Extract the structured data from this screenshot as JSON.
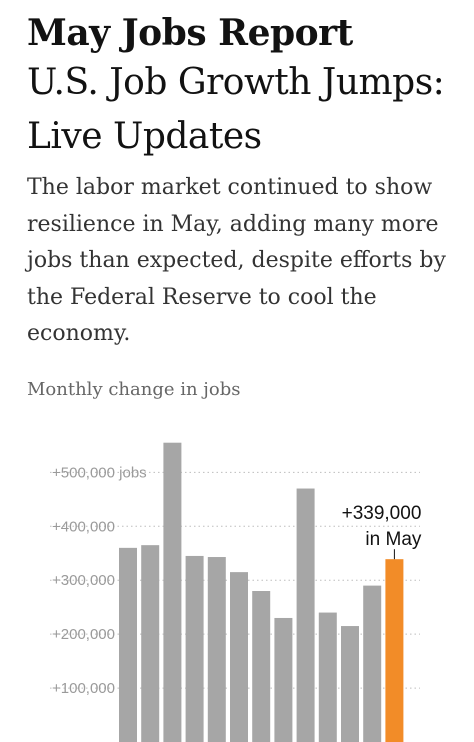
{
  "article": {
    "kicker": "May Jobs Report",
    "headline": "U.S. Job Growth Jumps: Live Updates",
    "summary": "The labor market continued to show resilience in May, adding many more jobs than expected, despite efforts by the Federal Reserve to cool the economy."
  },
  "colors": {
    "bar": "#a6a6a6",
    "highlight": "#f28c28",
    "text": "#121212"
  },
  "chart_data": {
    "type": "bar",
    "title": "Monthly change in jobs",
    "categories": [
      "",
      "",
      "",
      "",
      "",
      "",
      "",
      "",
      "",
      "",
      "",
      "",
      ""
    ],
    "values": [
      360000,
      365000,
      555000,
      345000,
      343000,
      315000,
      280000,
      230000,
      470000,
      240000,
      215000,
      290000,
      339000
    ],
    "highlight_index": 12,
    "ylim": [
      0,
      560000
    ],
    "yticks": [
      {
        "value": 100000,
        "label": "+100,000"
      },
      {
        "value": 200000,
        "label": "+200,000"
      },
      {
        "value": 300000,
        "label": "+300,000"
      },
      {
        "value": 400000,
        "label": "+400,000"
      },
      {
        "value": 500000,
        "label": "+500,000 jobs"
      }
    ],
    "annotation": {
      "value_label": "+339,000",
      "period_label": "in May"
    },
    "grid": true
  }
}
